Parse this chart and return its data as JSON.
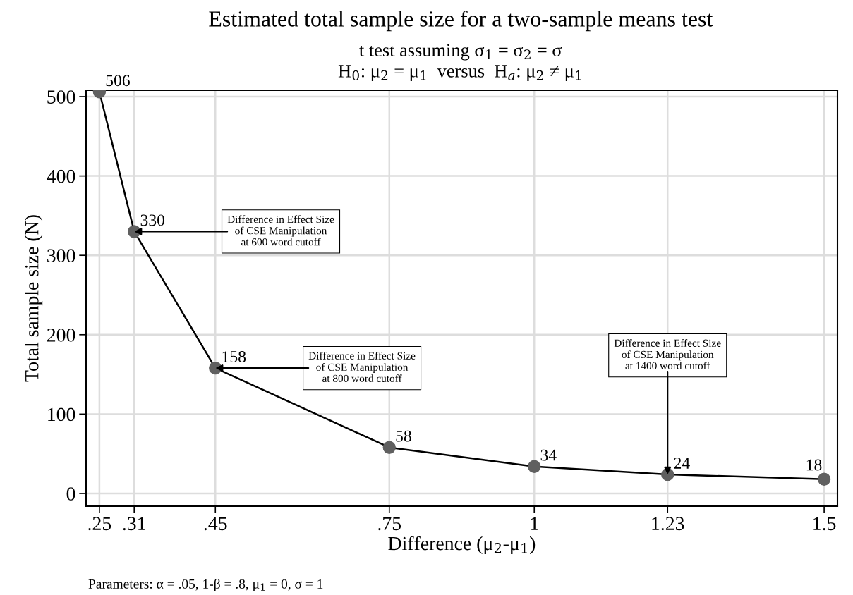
{
  "chart_data": {
    "type": "line",
    "title": "Estimated total sample size for a two-sample means test",
    "subtitle": "t test assuming σ$_{1}$ = σ$_{2}$ = σ\nH$_{0}$: μ$_{2}$ = μ$_{1}$  versus  H$_{a}$: μ$_{2}$ ≠ μ$_{1}$",
    "xlabel": "Difference (μ$_{2}$-μ$_{1}$)",
    "ylabel": "Total sample size (N)",
    "x": [
      0.25,
      0.31,
      0.45,
      0.75,
      1,
      1.23,
      1.5
    ],
    "values": [
      506,
      330,
      158,
      58,
      34,
      24,
      18
    ],
    "color": "#000000",
    "colors": [
      "#606060",
      "#606060",
      "#606060",
      "#606060",
      "#606060",
      "#606060",
      "#606060"
    ],
    "marker": "circle",
    "line_style": "solid",
    "data_labels": true,
    "xlim": [
      0.227,
      1.523
    ],
    "ylim": [
      -16,
      508
    ],
    "xticks": [
      {
        "value": 0.25,
        "label": ".25"
      },
      {
        "value": 0.31,
        "label": ".31"
      },
      {
        "value": 0.45,
        "label": ".45"
      },
      {
        "value": 0.75,
        "label": ".75"
      },
      1,
      1.23,
      1.5
    ],
    "yticks": [
      0,
      100,
      200,
      300,
      400,
      500
    ],
    "grid": true,
    "annotations": [
      {
        "text": "Difference in Effect Size\nof CSE Manipulation\nat 600 word cutoff",
        "x": 0.31,
        "y": 330
      },
      {
        "text": "Difference in Effect Size\nof CSE Manipulation\nat 800 word cutoff",
        "x": 0.45,
        "y": 158
      },
      {
        "text": "Difference in Effect Size\nof CSE Manipulation\nat 1400 word cutoff",
        "x": 1.23,
        "y": 24
      },
      "Parameters: α = .05, 1-β = .8, μ$_{1}$ = 0, σ = 1"
    ]
  }
}
